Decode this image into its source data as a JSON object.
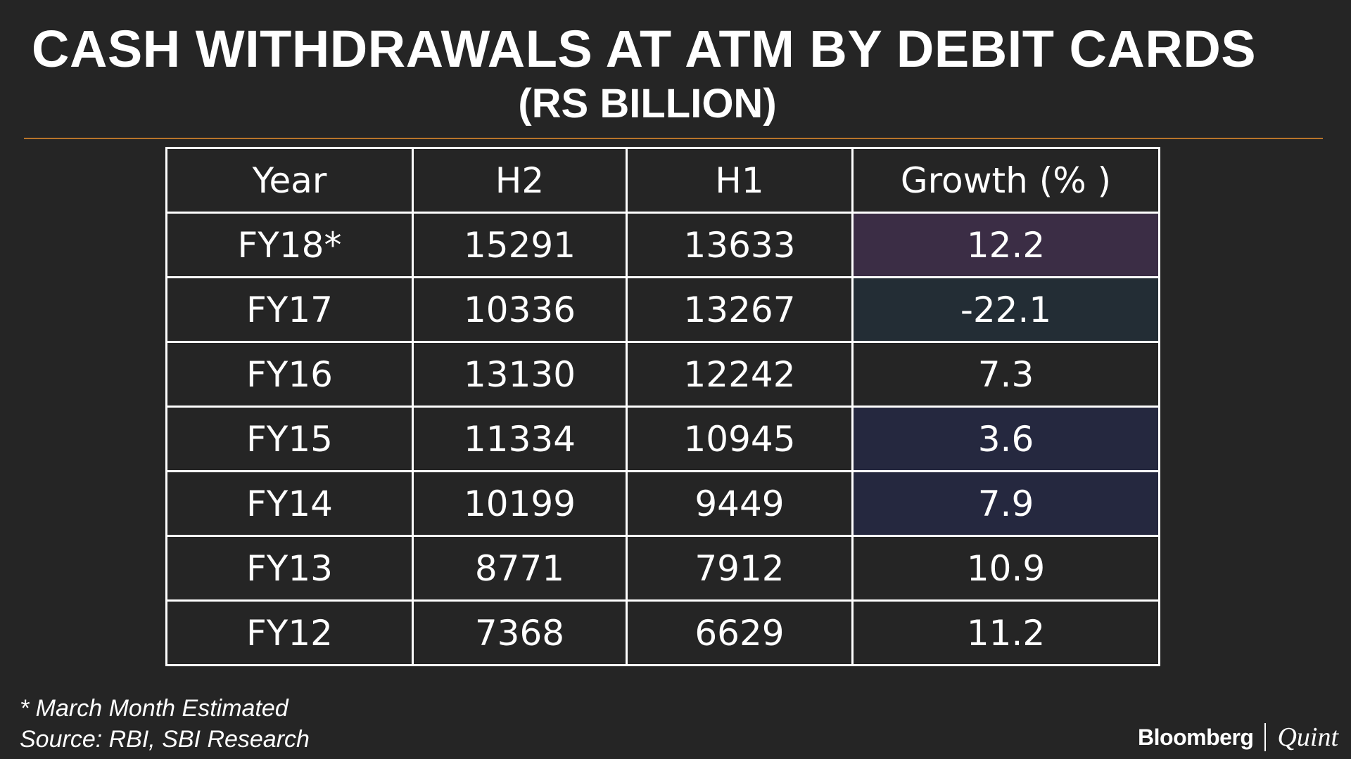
{
  "title": "CASH WITHDRAWALS AT ATM BY DEBIT CARDS",
  "subtitle": "(RS BILLION)",
  "footnote": "* March Month Estimated",
  "source": "Source: RBI, SBI Research",
  "logo": {
    "part1": "Bloomberg",
    "part2": "Quint"
  },
  "colors": {
    "background": "#252525",
    "rule": "#b8742a",
    "grid": "#ffffff",
    "highlight_purple": "#3b2d45",
    "highlight_teal": "#232d35",
    "highlight_navy": "#25283f"
  },
  "chart_data": {
    "type": "table",
    "columns": [
      "Year",
      "H2",
      "H1",
      "Growth (% )"
    ],
    "rows": [
      {
        "year": "FY18*",
        "h2": "15291",
        "h1": "13633",
        "growth": "12.2",
        "growth_fill": "#3b2d45"
      },
      {
        "year": "FY17",
        "h2": "10336",
        "h1": "13267",
        "growth": "-22.1",
        "growth_fill": "#232d35"
      },
      {
        "year": "FY16",
        "h2": "13130",
        "h1": "12242",
        "growth": "7.3",
        "growth_fill": ""
      },
      {
        "year": "FY15",
        "h2": "11334",
        "h1": "10945",
        "growth": "3.6",
        "growth_fill": "#25283f"
      },
      {
        "year": "FY14",
        "h2": "10199",
        "h1": "9449",
        "growth": "7.9",
        "growth_fill": "#25283f"
      },
      {
        "year": "FY13",
        "h2": "8771",
        "h1": "7912",
        "growth": "10.9",
        "growth_fill": ""
      },
      {
        "year": "FY12",
        "h2": "7368",
        "h1": "6629",
        "growth": "11.2",
        "growth_fill": ""
      }
    ]
  }
}
